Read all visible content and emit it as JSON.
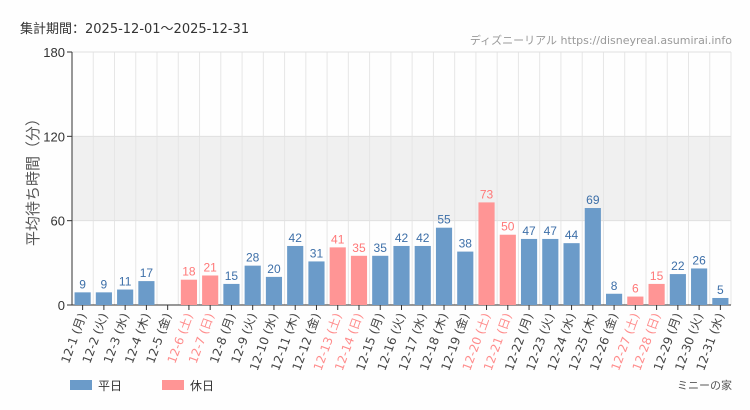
{
  "header": {
    "period": "集計期間：2025-12-01〜2025-12-31",
    "credit": "ディズニーリアル https://disneyreal.asumirai.info",
    "attraction": "ミニーの家"
  },
  "chart_data": {
    "type": "bar",
    "ylabel": "平均待ち時間（分）",
    "ylim": [
      0,
      180
    ],
    "yticks": [
      0,
      60,
      120,
      180
    ],
    "grid": true,
    "shaded_band": [
      60,
      120
    ],
    "legend_position": "bottom-left",
    "colors": {
      "平日": "#6b9bc9",
      "休日": "#ff9595"
    },
    "series": [
      {
        "name": "平日"
      },
      {
        "name": "休日"
      }
    ],
    "categories": [
      "12-1 (月)",
      "12-2 (火)",
      "12-3 (水)",
      "12-4 (木)",
      "12-5 (金)",
      "12-6 (土)",
      "12-7 (日)",
      "12-8 (月)",
      "12-9 (火)",
      "12-10 (水)",
      "12-11 (木)",
      "12-12 (金)",
      "12-13 (土)",
      "12-14 (日)",
      "12-15 (月)",
      "12-16 (火)",
      "12-17 (水)",
      "12-18 (木)",
      "12-19 (金)",
      "12-20 (土)",
      "12-21 (日)",
      "12-22 (月)",
      "12-23 (火)",
      "12-24 (水)",
      "12-25 (木)",
      "12-26 (金)",
      "12-27 (土)",
      "12-28 (日)",
      "12-29 (月)",
      "12-30 (火)",
      "12-31 (水)"
    ],
    "values": [
      9,
      9,
      11,
      17,
      null,
      18,
      21,
      15,
      28,
      20,
      42,
      31,
      41,
      35,
      35,
      42,
      42,
      55,
      38,
      73,
      50,
      47,
      47,
      44,
      69,
      8,
      6,
      15,
      22,
      26,
      5
    ],
    "day_type": [
      "平日",
      "平日",
      "平日",
      "平日",
      "平日",
      "休日",
      "休日",
      "平日",
      "平日",
      "平日",
      "平日",
      "平日",
      "休日",
      "休日",
      "平日",
      "平日",
      "平日",
      "平日",
      "平日",
      "休日",
      "休日",
      "平日",
      "平日",
      "平日",
      "平日",
      "平日",
      "休日",
      "休日",
      "平日",
      "平日",
      "平日"
    ]
  }
}
